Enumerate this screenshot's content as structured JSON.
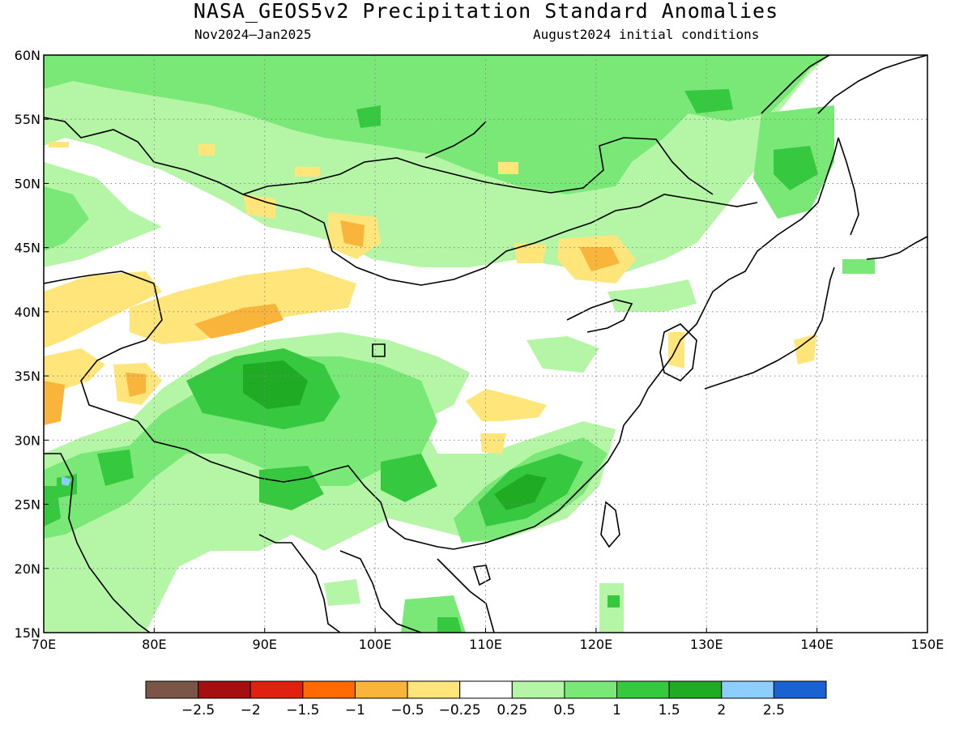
{
  "title": "NASA_GEOS5v2 Precipitation Standard Anomalies",
  "subtitle_left": "Nov2024–Jan2025",
  "subtitle_right": "August2024 initial conditions",
  "map": {
    "lon_range": [
      70,
      150
    ],
    "lat_range": [
      15,
      60
    ],
    "x_ticks": [
      "70E",
      "80E",
      "90E",
      "100E",
      "110E",
      "120E",
      "130E",
      "140E",
      "150E"
    ],
    "y_ticks": [
      "15N",
      "20N",
      "25N",
      "30N",
      "35N",
      "40N",
      "45N",
      "50N",
      "55N",
      "60N"
    ],
    "gridlines": "dotted"
  },
  "colorbar": {
    "colors": [
      "#7b5548",
      "#a50f0f",
      "#e0210f",
      "#ff6a00",
      "#f9b53b",
      "#ffe57a",
      "#ffffff",
      "#b4f5a6",
      "#7ae876",
      "#36c93f",
      "#1fab24",
      "#8ccfff",
      "#1a62d2"
    ],
    "labels": [
      "−2.5",
      "−2",
      "−1.5",
      "−1",
      "−0.5",
      "−0.25",
      "0.25",
      "0.5",
      "1",
      "1.5",
      "2",
      "2.5"
    ]
  }
}
